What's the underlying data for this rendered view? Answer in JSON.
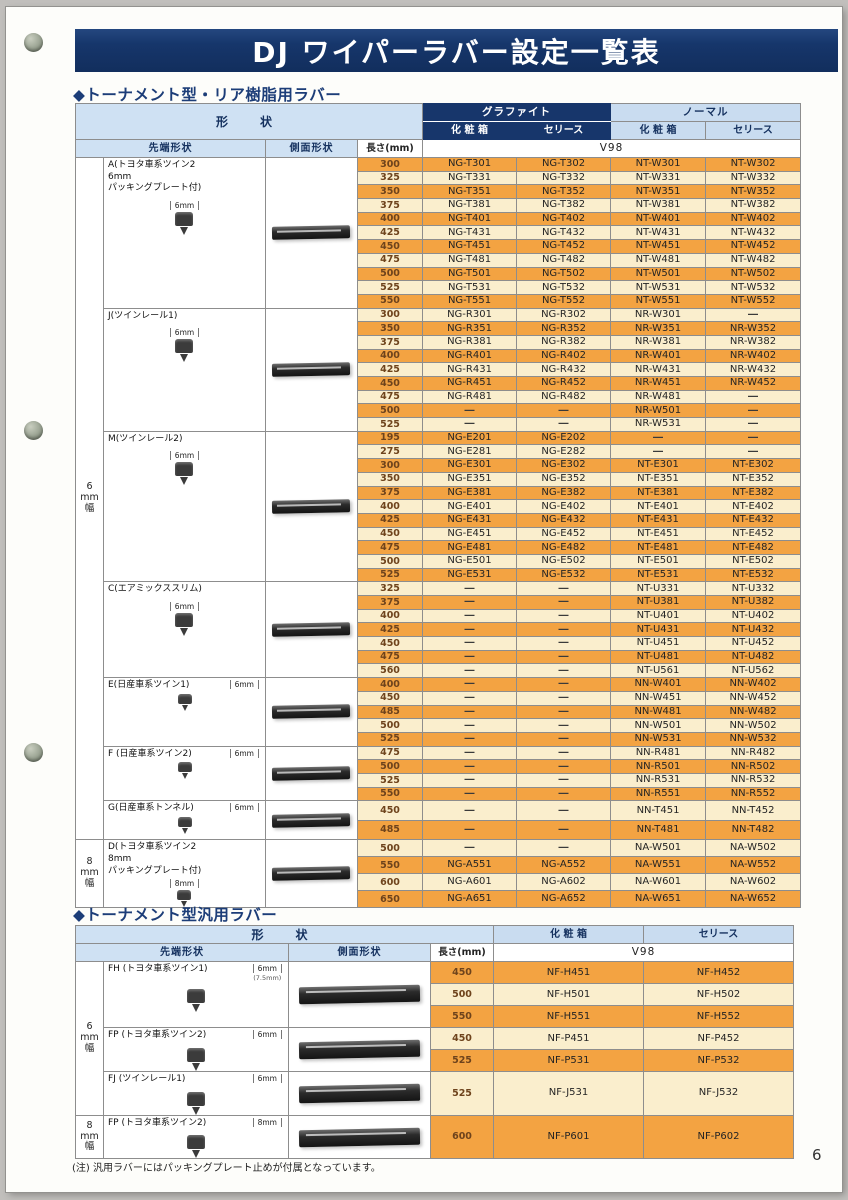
{
  "page": {
    "title": "DJ ワイパーラバー設定一覧表",
    "note": "(注) 汎用ラバーにはパッキングプレート止めが付属となっています。",
    "number": "6"
  },
  "table1": {
    "section_title": "◆トーナメント型・リア樹脂用ラバー",
    "headers": {
      "shape": "形　状",
      "graphite": "グラファイト",
      "normal": "ノーマル",
      "box": "化 粧 箱",
      "sleeve": "セリース",
      "tip": "先端形状",
      "side": "側面形状",
      "length": "長さ(mm)",
      "v98": "V98"
    },
    "groups": [
      {
        "label": "6\nmm\n幅"
      },
      {
        "label": "8\nmm\n幅"
      }
    ],
    "sections": [
      {
        "id": "A",
        "group": 0,
        "label": "A(トヨタ車系ツイン2\n 6mm\n パッキングプレート付)",
        "dim": "6mm",
        "dim_inline": false,
        "rows": [
          {
            "len": "300",
            "shade": "o",
            "cells": [
              "NG-T301",
              "NG-T302",
              "NT-W301",
              "NT-W302"
            ]
          },
          {
            "len": "325",
            "shade": "c",
            "cells": [
              "NG-T331",
              "NG-T332",
              "NT-W331",
              "NT-W332"
            ]
          },
          {
            "len": "350",
            "shade": "o",
            "cells": [
              "NG-T351",
              "NG-T352",
              "NT-W351",
              "NT-W352"
            ]
          },
          {
            "len": "375",
            "shade": "c",
            "cells": [
              "NG-T381",
              "NG-T382",
              "NT-W381",
              "NT-W382"
            ]
          },
          {
            "len": "400",
            "shade": "o",
            "cells": [
              "NG-T401",
              "NG-T402",
              "NT-W401",
              "NT-W402"
            ]
          },
          {
            "len": "425",
            "shade": "c",
            "cells": [
              "NG-T431",
              "NG-T432",
              "NT-W431",
              "NT-W432"
            ]
          },
          {
            "len": "450",
            "shade": "o",
            "cells": [
              "NG-T451",
              "NG-T452",
              "NT-W451",
              "NT-W452"
            ]
          },
          {
            "len": "475",
            "shade": "c",
            "cells": [
              "NG-T481",
              "NG-T482",
              "NT-W481",
              "NT-W482"
            ]
          },
          {
            "len": "500",
            "shade": "o",
            "cells": [
              "NG-T501",
              "NG-T502",
              "NT-W501",
              "NT-W502"
            ]
          },
          {
            "len": "525",
            "shade": "c",
            "cells": [
              "NG-T531",
              "NG-T532",
              "NT-W531",
              "NT-W532"
            ]
          },
          {
            "len": "550",
            "shade": "o",
            "cells": [
              "NG-T551",
              "NG-T552",
              "NT-W551",
              "NT-W552"
            ]
          }
        ]
      },
      {
        "id": "J",
        "group": 0,
        "label": "J(ツインレール1)",
        "dim": "6mm",
        "dim_inline": false,
        "rows": [
          {
            "len": "300",
            "shade": "c",
            "cells": [
              "NG-R301",
              "NG-R302",
              "NR-W301",
              "―"
            ]
          },
          {
            "len": "350",
            "shade": "o",
            "cells": [
              "NG-R351",
              "NG-R352",
              "NR-W351",
              "NR-W352"
            ]
          },
          {
            "len": "375",
            "shade": "c",
            "cells": [
              "NG-R381",
              "NG-R382",
              "NR-W381",
              "NR-W382"
            ]
          },
          {
            "len": "400",
            "shade": "o",
            "cells": [
              "NG-R401",
              "NG-R402",
              "NR-W401",
              "NR-W402"
            ]
          },
          {
            "len": "425",
            "shade": "c",
            "cells": [
              "NG-R431",
              "NG-R432",
              "NR-W431",
              "NR-W432"
            ]
          },
          {
            "len": "450",
            "shade": "o",
            "cells": [
              "NG-R451",
              "NG-R452",
              "NR-W451",
              "NR-W452"
            ]
          },
          {
            "len": "475",
            "shade": "c",
            "cells": [
              "NG-R481",
              "NG-R482",
              "NR-W481",
              "―"
            ]
          },
          {
            "len": "500",
            "shade": "o",
            "cells": [
              "―",
              "―",
              "NR-W501",
              "―"
            ]
          },
          {
            "len": "525",
            "shade": "c",
            "cells": [
              "―",
              "―",
              "NR-W531",
              "―"
            ]
          }
        ]
      },
      {
        "id": "M",
        "group": 0,
        "label": "M(ツインレール2)",
        "dim": "6mm",
        "dim_inline": false,
        "rows": [
          {
            "len": "195",
            "shade": "o",
            "cells": [
              "NG-E201",
              "NG-E202",
              "―",
              "―"
            ]
          },
          {
            "len": "275",
            "shade": "c",
            "cells": [
              "NG-E281",
              "NG-E282",
              "―",
              "―"
            ]
          },
          {
            "len": "300",
            "shade": "o",
            "cells": [
              "NG-E301",
              "NG-E302",
              "NT-E301",
              "NT-E302"
            ]
          },
          {
            "len": "350",
            "shade": "c",
            "cells": [
              "NG-E351",
              "NG-E352",
              "NT-E351",
              "NT-E352"
            ]
          },
          {
            "len": "375",
            "shade": "o",
            "cells": [
              "NG-E381",
              "NG-E382",
              "NT-E381",
              "NT-E382"
            ]
          },
          {
            "len": "400",
            "shade": "c",
            "cells": [
              "NG-E401",
              "NG-E402",
              "NT-E401",
              "NT-E402"
            ]
          },
          {
            "len": "425",
            "shade": "o",
            "cells": [
              "NG-E431",
              "NG-E432",
              "NT-E431",
              "NT-E432"
            ]
          },
          {
            "len": "450",
            "shade": "c",
            "cells": [
              "NG-E451",
              "NG-E452",
              "NT-E451",
              "NT-E452"
            ]
          },
          {
            "len": "475",
            "shade": "o",
            "cells": [
              "NG-E481",
              "NG-E482",
              "NT-E481",
              "NT-E482"
            ]
          },
          {
            "len": "500",
            "shade": "c",
            "cells": [
              "NG-E501",
              "NG-E502",
              "NT-E501",
              "NT-E502"
            ]
          },
          {
            "len": "525",
            "shade": "o",
            "cells": [
              "NG-E531",
              "NG-E532",
              "NT-E531",
              "NT-E532"
            ]
          }
        ]
      },
      {
        "id": "C",
        "group": 0,
        "label": "C(エアミックススリム)",
        "dim": "6mm",
        "dim_inline": false,
        "rows": [
          {
            "len": "325",
            "shade": "c",
            "cells": [
              "―",
              "―",
              "NT-U331",
              "NT-U332"
            ]
          },
          {
            "len": "375",
            "shade": "o",
            "cells": [
              "―",
              "―",
              "NT-U381",
              "NT-U382"
            ]
          },
          {
            "len": "400",
            "shade": "c",
            "cells": [
              "―",
              "―",
              "NT-U401",
              "NT-U402"
            ]
          },
          {
            "len": "425",
            "shade": "o",
            "cells": [
              "―",
              "―",
              "NT-U431",
              "NT-U432"
            ]
          },
          {
            "len": "450",
            "shade": "c",
            "cells": [
              "―",
              "―",
              "NT-U451",
              "NT-U452"
            ]
          },
          {
            "len": "475",
            "shade": "o",
            "cells": [
              "―",
              "―",
              "NT-U481",
              "NT-U482"
            ]
          },
          {
            "len": "560",
            "shade": "c",
            "cells": [
              "―",
              "―",
              "NT-U561",
              "NT-U562"
            ]
          }
        ]
      },
      {
        "id": "E",
        "group": 0,
        "label": "E(日産車系ツイン1)",
        "dim": "6mm",
        "dim_inline": true,
        "rows": [
          {
            "len": "400",
            "shade": "o",
            "cells": [
              "―",
              "―",
              "NN-W401",
              "NN-W402"
            ]
          },
          {
            "len": "450",
            "shade": "c",
            "cells": [
              "―",
              "―",
              "NN-W451",
              "NN-W452"
            ]
          },
          {
            "len": "485",
            "shade": "o",
            "cells": [
              "―",
              "―",
              "NN-W481",
              "NN-W482"
            ]
          },
          {
            "len": "500",
            "shade": "c",
            "cells": [
              "―",
              "―",
              "NN-W501",
              "NN-W502"
            ]
          },
          {
            "len": "525",
            "shade": "o",
            "cells": [
              "―",
              "―",
              "NN-W531",
              "NN-W532"
            ]
          }
        ]
      },
      {
        "id": "F",
        "group": 0,
        "label": "F (日産車系ツイン2)",
        "dim": "6mm",
        "dim_inline": true,
        "rows": [
          {
            "len": "475",
            "shade": "c",
            "cells": [
              "―",
              "―",
              "NN-R481",
              "NN-R482"
            ]
          },
          {
            "len": "500",
            "shade": "o",
            "cells": [
              "―",
              "―",
              "NN-R501",
              "NN-R502"
            ]
          },
          {
            "len": "525",
            "shade": "c",
            "cells": [
              "―",
              "―",
              "NN-R531",
              "NN-R532"
            ]
          },
          {
            "len": "550",
            "shade": "o",
            "cells": [
              "―",
              "―",
              "NN-R551",
              "NN-R552"
            ]
          }
        ]
      },
      {
        "id": "G",
        "group": 0,
        "label": "G(日産車系トンネル)",
        "dim": "6mm",
        "dim_inline": true,
        "rows": [
          {
            "len": "450",
            "shade": "c",
            "cells": [
              "―",
              "―",
              "NN-T451",
              "NN-T452"
            ]
          },
          {
            "len": "485",
            "shade": "o",
            "cells": [
              "―",
              "―",
              "NN-T481",
              "NN-T482"
            ]
          }
        ]
      },
      {
        "id": "D",
        "group": 1,
        "label": "D(トヨタ車系ツイン2\n 8mm\n パッキングプレート付)",
        "dim": "8mm",
        "dim_inline": false,
        "rows": [
          {
            "len": "500",
            "shade": "c",
            "cells": [
              "―",
              "―",
              "NA-W501",
              "NA-W502"
            ]
          },
          {
            "len": "550",
            "shade": "o",
            "cells": [
              "NG-A551",
              "NG-A552",
              "NA-W551",
              "NA-W552"
            ]
          },
          {
            "len": "600",
            "shade": "c",
            "cells": [
              "NG-A601",
              "NG-A602",
              "NA-W601",
              "NA-W602"
            ]
          },
          {
            "len": "650",
            "shade": "o",
            "cells": [
              "NG-A651",
              "NG-A652",
              "NA-W651",
              "NA-W652"
            ]
          }
        ]
      }
    ]
  },
  "table2": {
    "section_title": "◆トーナメント型汎用ラバー",
    "headers": {
      "shape": "形　状",
      "box": "化 粧 箱",
      "sleeve": "セリース",
      "tip": "先端形状",
      "side": "側面形状",
      "length": "長さ(mm)",
      "v98": "V98"
    },
    "groups": [
      {
        "label": "6\nmm\n幅"
      },
      {
        "label": "8\nmm\n幅"
      }
    ],
    "sections": [
      {
        "id": "FH",
        "group": 0,
        "label": "FH (トヨタ車系ツイン1)",
        "dim": "6mm",
        "dim_sub": "(7.5mm)",
        "dim_inline": true,
        "rows": [
          {
            "len": "450",
            "shade": "o",
            "cells": [
              "NF-H451",
              "NF-H452"
            ]
          },
          {
            "len": "500",
            "shade": "c",
            "cells": [
              "NF-H501",
              "NF-H502"
            ]
          },
          {
            "len": "550",
            "shade": "o",
            "cells": [
              "NF-H551",
              "NF-H552"
            ]
          }
        ]
      },
      {
        "id": "FP6",
        "group": 0,
        "label": "FP (トヨタ車系ツイン2)",
        "dim": "6mm",
        "dim_inline": true,
        "rows": [
          {
            "len": "450",
            "shade": "c",
            "cells": [
              "NF-P451",
              "NF-P452"
            ]
          },
          {
            "len": "525",
            "shade": "o",
            "cells": [
              "NF-P531",
              "NF-P532"
            ]
          }
        ]
      },
      {
        "id": "FJ",
        "group": 0,
        "label": "FJ (ツインレール1)",
        "dim": "6mm",
        "dim_inline": true,
        "rows": [
          {
            "len": "525",
            "shade": "c",
            "cells": [
              "NF-J531",
              "NF-J532"
            ]
          }
        ]
      },
      {
        "id": "FP8",
        "group": 1,
        "label": "FP (トヨタ車系ツイン2)",
        "dim": "8mm",
        "dim_inline": true,
        "rows": [
          {
            "len": "600",
            "shade": "o",
            "cells": [
              "NF-P601",
              "NF-P602"
            ]
          }
        ]
      }
    ]
  }
}
